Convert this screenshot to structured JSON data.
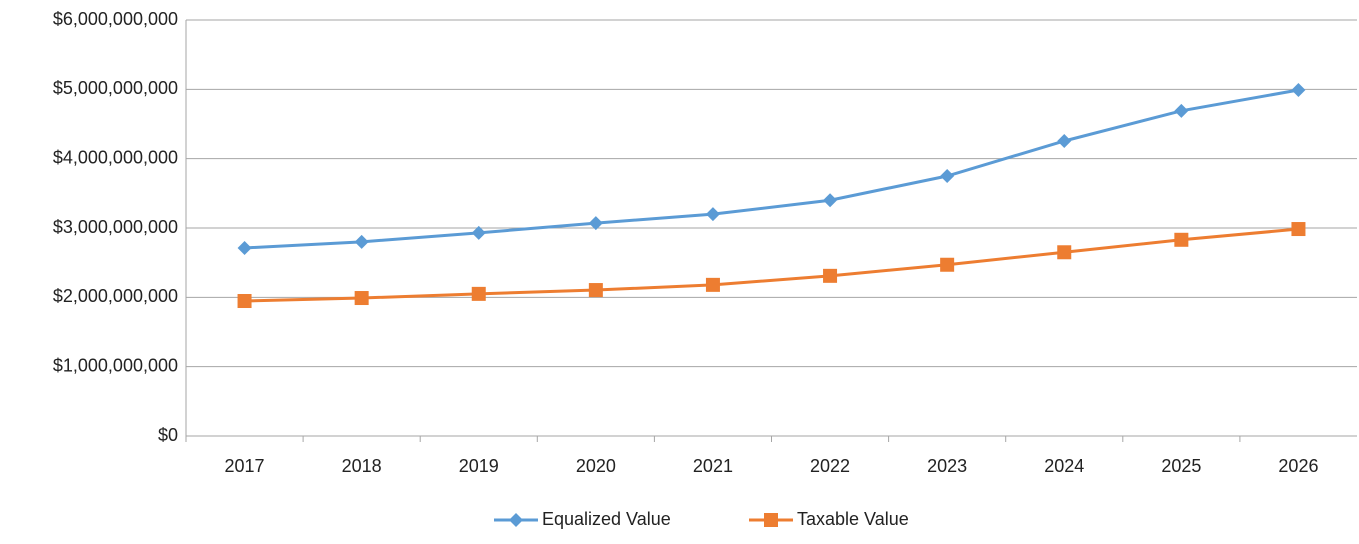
{
  "chart_data": {
    "type": "line",
    "categories": [
      "2017",
      "2018",
      "2019",
      "2020",
      "2021",
      "2022",
      "2023",
      "2024",
      "2025",
      "2026"
    ],
    "series": [
      {
        "name": "Equalized Value",
        "color": "#5b9bd5",
        "marker": "diamond",
        "values": [
          2712000000,
          2800000000,
          2930000000,
          3070000000,
          3200000000,
          3400000000,
          3750000000,
          4255000000,
          4690000000,
          4990000000
        ]
      },
      {
        "name": "Taxable Value",
        "color": "#ed7d31",
        "marker": "square",
        "values": [
          1947000000,
          1990000000,
          2050000000,
          2105000000,
          2180000000,
          2310000000,
          2470000000,
          2650000000,
          2830000000,
          2985000000
        ]
      }
    ],
    "ylim": [
      0,
      6000000000
    ],
    "yticks": [
      {
        "value": 0,
        "label": "$0"
      },
      {
        "value": 1000000000,
        "label": "$1,000,000,000"
      },
      {
        "value": 2000000000,
        "label": "$2,000,000,000"
      },
      {
        "value": 3000000000,
        "label": "$3,000,000,000"
      },
      {
        "value": 4000000000,
        "label": "$4,000,000,000"
      },
      {
        "value": 5000000000,
        "label": "$5,000,000,000"
      },
      {
        "value": 6000000000,
        "label": "$6,000,000,000"
      }
    ],
    "grid": true,
    "legend": "bottom"
  }
}
